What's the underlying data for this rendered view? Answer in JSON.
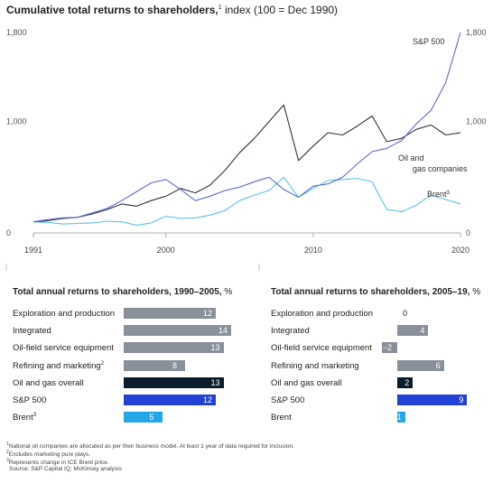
{
  "title": {
    "bold": "Cumulative total returns to shareholders,",
    "sup": "1",
    "rest": " index (100 = Dec 1990)"
  },
  "chart_data": [
    {
      "type": "line",
      "title": "Cumulative total returns to shareholders, index (100 = Dec 1990)",
      "xlim": [
        1991,
        2020
      ],
      "ylim": [
        0,
        1800
      ],
      "x_ticks": [
        "1991",
        "2000",
        "2010",
        "2020"
      ],
      "y_ticks_left": [
        "0",
        "1,000",
        "1,800"
      ],
      "y_ticks_right": [
        "0",
        "1,000",
        "1,800"
      ],
      "grid": false,
      "series": [
        {
          "name": "S&P 500",
          "color": "#5a6cc8",
          "points": [
            [
              1991,
              100
            ],
            [
              1992,
              120
            ],
            [
              1993,
              135
            ],
            [
              1994,
              140
            ],
            [
              1995,
              180
            ],
            [
              1996,
              220
            ],
            [
              1997,
              290
            ],
            [
              1998,
              370
            ],
            [
              1999,
              450
            ],
            [
              2000,
              480
            ],
            [
              2001,
              390
            ],
            [
              2002,
              290
            ],
            [
              2003,
              330
            ],
            [
              2004,
              380
            ],
            [
              2005,
              410
            ],
            [
              2006,
              460
            ],
            [
              2007,
              500
            ],
            [
              2008,
              390
            ],
            [
              2009,
              320
            ],
            [
              2010,
              420
            ],
            [
              2011,
              440
            ],
            [
              2012,
              500
            ],
            [
              2013,
              620
            ],
            [
              2014,
              730
            ],
            [
              2015,
              760
            ],
            [
              2016,
              830
            ],
            [
              2017,
              980
            ],
            [
              2018,
              1100
            ],
            [
              2019,
              1350
            ],
            [
              2020,
              1800
            ]
          ]
        },
        {
          "name": "Oil and gas companies",
          "color": "#2f353d",
          "points": [
            [
              1991,
              100
            ],
            [
              1992,
              110
            ],
            [
              1993,
              130
            ],
            [
              1994,
              140
            ],
            [
              1995,
              170
            ],
            [
              1996,
              210
            ],
            [
              1997,
              260
            ],
            [
              1998,
              240
            ],
            [
              1999,
              290
            ],
            [
              2000,
              330
            ],
            [
              2001,
              400
            ],
            [
              2002,
              360
            ],
            [
              2003,
              430
            ],
            [
              2004,
              560
            ],
            [
              2005,
              720
            ],
            [
              2006,
              850
            ],
            [
              2007,
              1000
            ],
            [
              2008,
              1150
            ],
            [
              2009,
              650
            ],
            [
              2010,
              780
            ],
            [
              2011,
              900
            ],
            [
              2012,
              880
            ],
            [
              2013,
              960
            ],
            [
              2014,
              1050
            ],
            [
              2015,
              820
            ],
            [
              2016,
              850
            ],
            [
              2017,
              930
            ],
            [
              2018,
              970
            ],
            [
              2019,
              880
            ],
            [
              2020,
              900
            ]
          ]
        },
        {
          "name": "Brent",
          "sup": "3",
          "color": "#5cc3e6",
          "points": [
            [
              1991,
              100
            ],
            [
              1992,
              95
            ],
            [
              1993,
              80
            ],
            [
              1994,
              85
            ],
            [
              1995,
              90
            ],
            [
              1996,
              105
            ],
            [
              1997,
              100
            ],
            [
              1998,
              70
            ],
            [
              1999,
              90
            ],
            [
              2000,
              150
            ],
            [
              2001,
              130
            ],
            [
              2002,
              135
            ],
            [
              2003,
              160
            ],
            [
              2004,
              200
            ],
            [
              2005,
              290
            ],
            [
              2006,
              340
            ],
            [
              2007,
              380
            ],
            [
              2008,
              500
            ],
            [
              2009,
              320
            ],
            [
              2010,
              400
            ],
            [
              2011,
              470
            ],
            [
              2012,
              480
            ],
            [
              2013,
              490
            ],
            [
              2014,
              460
            ],
            [
              2015,
              210
            ],
            [
              2016,
              190
            ],
            [
              2017,
              250
            ],
            [
              2018,
              340
            ],
            [
              2019,
              300
            ],
            [
              2020,
              260
            ]
          ]
        }
      ]
    },
    {
      "type": "bar",
      "title": "Total annual returns to shareholders, 1990–2005,",
      "unit": " %",
      "categories": [
        "Exploration and production",
        "Integrated",
        "Oil-field service equipment",
        "Refining and marketing",
        "Oil and gas overall",
        "S&P 500",
        "Brent"
      ],
      "category_sups": [
        "",
        "",
        "",
        "2",
        "",
        "",
        "3"
      ],
      "values": [
        12,
        14,
        13,
        8,
        13,
        12,
        5
      ],
      "colors": [
        "#8a9099",
        "#8a9099",
        "#8a9099",
        "#8a9099",
        "#0b1c2c",
        "#2240d4",
        "#22a6e8"
      ]
    },
    {
      "type": "bar",
      "title": "Total annual returns to shareholders, 2005–19,",
      "unit": " %",
      "categories": [
        "Exploration and production",
        "Integrated",
        "Oil-field service equipment",
        "Refining and marketing",
        "Oil and gas overall",
        "S&P 500",
        "Brent"
      ],
      "category_sups": [
        "",
        "",
        "",
        "",
        "",
        "",
        ""
      ],
      "values": [
        0,
        4,
        -2,
        6,
        2,
        9,
        1
      ],
      "value_labels": [
        "0",
        "4",
        "−2",
        "6",
        "2",
        "9",
        "1"
      ],
      "colors": [
        "#8a9099",
        "#8a9099",
        "#8a9099",
        "#8a9099",
        "#0b1c2c",
        "#2240d4",
        "#22a6e8"
      ]
    }
  ],
  "footnotes": [
    {
      "sup": "1",
      "text": "National oil companies are allocated as per their business model. At least 1 year of data required for inclusion."
    },
    {
      "sup": "2",
      "text": "Excludes marketing pure plays."
    },
    {
      "sup": "3",
      "text": "Represents change in ICE Brent price."
    },
    {
      "sup": "",
      "text": "Source: S&P Capital IQ; McKinsey analysis"
    }
  ]
}
